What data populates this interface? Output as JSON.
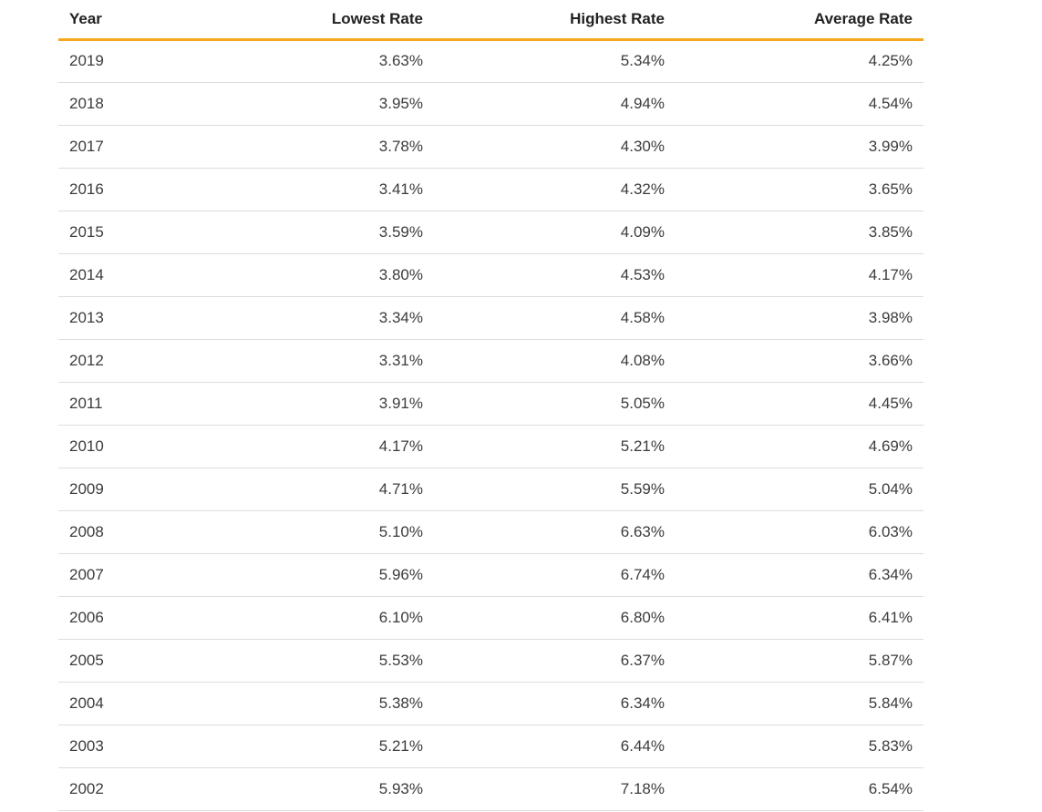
{
  "table": {
    "columns": [
      {
        "label": "Year",
        "align": "left"
      },
      {
        "label": "Lowest Rate",
        "align": "right"
      },
      {
        "label": "Highest Rate",
        "align": "right"
      },
      {
        "label": "Average Rate",
        "align": "right"
      }
    ],
    "rows": [
      [
        "2019",
        "3.63%",
        "5.34%",
        "4.25%"
      ],
      [
        "2018",
        "3.95%",
        "4.94%",
        "4.54%"
      ],
      [
        "2017",
        "3.78%",
        "4.30%",
        "3.99%"
      ],
      [
        "2016",
        "3.41%",
        "4.32%",
        "3.65%"
      ],
      [
        "2015",
        "3.59%",
        "4.09%",
        "3.85%"
      ],
      [
        "2014",
        "3.80%",
        "4.53%",
        "4.17%"
      ],
      [
        "2013",
        "3.34%",
        "4.58%",
        "3.98%"
      ],
      [
        "2012",
        "3.31%",
        "4.08%",
        "3.66%"
      ],
      [
        "2011",
        "3.91%",
        "5.05%",
        "4.45%"
      ],
      [
        "2010",
        "4.17%",
        "5.21%",
        "4.69%"
      ],
      [
        "2009",
        "4.71%",
        "5.59%",
        "5.04%"
      ],
      [
        "2008",
        "5.10%",
        "6.63%",
        "6.03%"
      ],
      [
        "2007",
        "5.96%",
        "6.74%",
        "6.34%"
      ],
      [
        "2006",
        "6.10%",
        "6.80%",
        "6.41%"
      ],
      [
        "2005",
        "5.53%",
        "6.37%",
        "5.87%"
      ],
      [
        "2004",
        "5.38%",
        "6.34%",
        "5.84%"
      ],
      [
        "2003",
        "5.21%",
        "6.44%",
        "5.83%"
      ],
      [
        "2002",
        "5.93%",
        "7.18%",
        "6.54%"
      ]
    ]
  },
  "colors": {
    "header_underline": "#F5A81E",
    "row_divider": "#DDDDDD",
    "header_text": "#212121",
    "body_text": "#3C3C3C",
    "background": "#FFFFFF"
  },
  "chart_data": {
    "type": "table",
    "title": "",
    "columns": [
      "Year",
      "Lowest Rate",
      "Highest Rate",
      "Average Rate"
    ],
    "categories": [
      2019,
      2018,
      2017,
      2016,
      2015,
      2014,
      2013,
      2012,
      2011,
      2010,
      2009,
      2008,
      2007,
      2006,
      2005,
      2004,
      2003,
      2002
    ],
    "series": [
      {
        "name": "Lowest Rate",
        "values": [
          3.63,
          3.95,
          3.78,
          3.41,
          3.59,
          3.8,
          3.34,
          3.31,
          3.91,
          4.17,
          4.71,
          5.1,
          5.96,
          6.1,
          5.53,
          5.38,
          5.21,
          5.93
        ]
      },
      {
        "name": "Highest Rate",
        "values": [
          5.34,
          4.94,
          4.3,
          4.32,
          4.09,
          4.53,
          4.58,
          4.08,
          5.05,
          5.21,
          5.59,
          6.63,
          6.74,
          6.8,
          6.37,
          6.34,
          6.44,
          7.18
        ]
      },
      {
        "name": "Average Rate",
        "values": [
          4.25,
          4.54,
          3.99,
          3.65,
          3.85,
          4.17,
          3.98,
          3.66,
          4.45,
          4.69,
          5.04,
          6.03,
          6.34,
          6.41,
          5.87,
          5.84,
          5.83,
          6.54
        ]
      }
    ],
    "unit": "%",
    "layout": "rows are years descending; rate values right-aligned; gold rule under header; light gray row dividers"
  }
}
